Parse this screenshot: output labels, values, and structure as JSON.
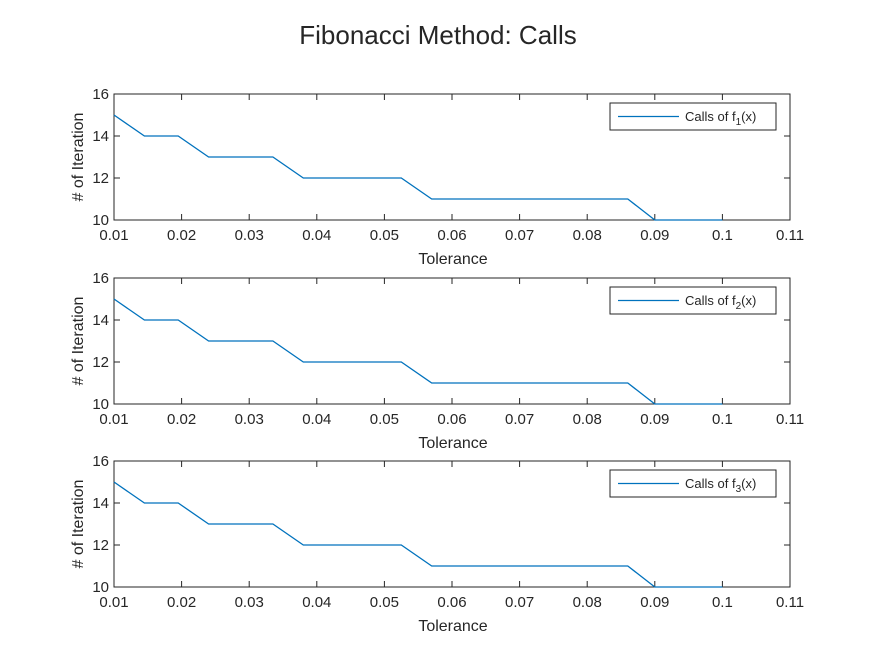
{
  "figure_title": "Fibonacci Method: Calls",
  "colors": {
    "series": "#0072BD",
    "axis": "#262626",
    "background": "#ffffff"
  },
  "chart_data": [
    {
      "type": "line",
      "title": "",
      "xlabel": "Tolerance",
      "ylabel": "# of Iteration",
      "xlim": [
        0.01,
        0.11
      ],
      "ylim": [
        10,
        16
      ],
      "xticks": [
        "0.01",
        "0.02",
        "0.03",
        "0.04",
        "0.05",
        "0.06",
        "0.07",
        "0.08",
        "0.09",
        "0.1",
        "0.11"
      ],
      "yticks": [
        "10",
        "12",
        "14",
        "16"
      ],
      "grid": false,
      "legend_position": "top-right",
      "series": [
        {
          "name": "Calls of f1(x)",
          "legend": {
            "prefix": "Calls of f",
            "subscript": "1",
            "suffix": "(x)"
          },
          "x": [
            0.01,
            0.0145,
            0.0195,
            0.024,
            0.0335,
            0.038,
            0.0525,
            0.057,
            0.086,
            0.09,
            0.1
          ],
          "y": [
            15,
            14,
            14,
            13,
            13,
            12,
            12,
            11,
            11,
            10,
            10
          ]
        }
      ]
    },
    {
      "type": "line",
      "title": "",
      "xlabel": "Tolerance",
      "ylabel": "# of Iteration",
      "xlim": [
        0.01,
        0.11
      ],
      "ylim": [
        10,
        16
      ],
      "xticks": [
        "0.01",
        "0.02",
        "0.03",
        "0.04",
        "0.05",
        "0.06",
        "0.07",
        "0.08",
        "0.09",
        "0.1",
        "0.11"
      ],
      "yticks": [
        "10",
        "12",
        "14",
        "16"
      ],
      "grid": false,
      "legend_position": "top-right",
      "series": [
        {
          "name": "Calls of f2(x)",
          "legend": {
            "prefix": "Calls of f",
            "subscript": "2",
            "suffix": "(x)"
          },
          "x": [
            0.01,
            0.0145,
            0.0195,
            0.024,
            0.0335,
            0.038,
            0.0525,
            0.057,
            0.086,
            0.09,
            0.1
          ],
          "y": [
            15,
            14,
            14,
            13,
            13,
            12,
            12,
            11,
            11,
            10,
            10
          ]
        }
      ]
    },
    {
      "type": "line",
      "title": "",
      "xlabel": "Tolerance",
      "ylabel": "# of Iteration",
      "xlim": [
        0.01,
        0.11
      ],
      "ylim": [
        10,
        16
      ],
      "xticks": [
        "0.01",
        "0.02",
        "0.03",
        "0.04",
        "0.05",
        "0.06",
        "0.07",
        "0.08",
        "0.09",
        "0.1",
        "0.11"
      ],
      "yticks": [
        "10",
        "12",
        "14",
        "16"
      ],
      "grid": false,
      "legend_position": "top-right",
      "series": [
        {
          "name": "Calls of f3(x)",
          "legend": {
            "prefix": "Calls of f",
            "subscript": "3",
            "suffix": "(x)"
          },
          "x": [
            0.01,
            0.0145,
            0.0195,
            0.024,
            0.0335,
            0.038,
            0.0525,
            0.057,
            0.086,
            0.09,
            0.1
          ],
          "y": [
            15,
            14,
            14,
            13,
            13,
            12,
            12,
            11,
            11,
            10,
            10
          ]
        }
      ]
    }
  ]
}
